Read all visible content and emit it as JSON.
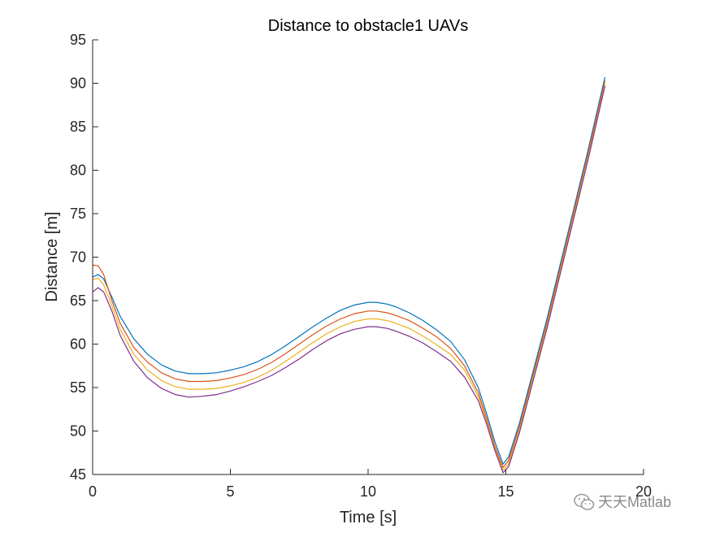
{
  "chart_data": {
    "type": "line",
    "title": "Distance to obstacle1 UAVs",
    "xlabel": "Time [s]",
    "ylabel": "Distance [m]",
    "xlim": [
      0,
      20
    ],
    "ylim": [
      45,
      95
    ],
    "xticks": [
      0,
      5,
      10,
      15,
      20
    ],
    "yticks": [
      45,
      50,
      55,
      60,
      65,
      70,
      75,
      80,
      85,
      90,
      95
    ],
    "grid": false,
    "series": [
      {
        "color": "#0072BD",
        "points": [
          [
            0,
            67.7
          ],
          [
            0.2,
            68.0
          ],
          [
            0.4,
            67.5
          ],
          [
            0.7,
            65.4
          ],
          [
            1,
            63.2
          ],
          [
            1.5,
            60.6
          ],
          [
            2,
            58.8
          ],
          [
            2.5,
            57.6
          ],
          [
            3,
            56.9
          ],
          [
            3.5,
            56.6
          ],
          [
            4,
            56.6
          ],
          [
            4.5,
            56.7
          ],
          [
            5,
            57.0
          ],
          [
            5.5,
            57.4
          ],
          [
            6,
            58.0
          ],
          [
            6.5,
            58.8
          ],
          [
            7,
            59.8
          ],
          [
            7.5,
            60.9
          ],
          [
            8,
            62.0
          ],
          [
            8.5,
            63.0
          ],
          [
            9,
            63.9
          ],
          [
            9.5,
            64.5
          ],
          [
            10,
            64.8
          ],
          [
            10.3,
            64.8
          ],
          [
            10.7,
            64.6
          ],
          [
            11,
            64.3
          ],
          [
            11.5,
            63.6
          ],
          [
            12,
            62.7
          ],
          [
            12.5,
            61.6
          ],
          [
            13,
            60.3
          ],
          [
            13.5,
            58.2
          ],
          [
            14,
            55.0
          ],
          [
            14.3,
            52.0
          ],
          [
            14.6,
            48.8
          ],
          [
            14.9,
            46.2
          ],
          [
            15.1,
            47.0
          ],
          [
            15.5,
            51.0
          ],
          [
            16,
            57.0
          ],
          [
            16.5,
            63.0
          ],
          [
            17,
            69.5
          ],
          [
            17.5,
            76.0
          ],
          [
            18,
            82.5
          ],
          [
            18.6,
            90.7
          ]
        ]
      },
      {
        "color": "#D95319",
        "points": [
          [
            0,
            69.1
          ],
          [
            0.2,
            69.0
          ],
          [
            0.4,
            68.0
          ],
          [
            0.7,
            65.0
          ],
          [
            1,
            62.4
          ],
          [
            1.5,
            59.6
          ],
          [
            2,
            57.9
          ],
          [
            2.5,
            56.7
          ],
          [
            3,
            56.0
          ],
          [
            3.5,
            55.7
          ],
          [
            4,
            55.7
          ],
          [
            4.5,
            55.8
          ],
          [
            5,
            56.1
          ],
          [
            5.5,
            56.5
          ],
          [
            6,
            57.1
          ],
          [
            6.5,
            57.9
          ],
          [
            7,
            58.9
          ],
          [
            7.5,
            60.0
          ],
          [
            8,
            61.1
          ],
          [
            8.5,
            62.1
          ],
          [
            9,
            62.9
          ],
          [
            9.5,
            63.5
          ],
          [
            10,
            63.8
          ],
          [
            10.3,
            63.8
          ],
          [
            10.7,
            63.6
          ],
          [
            11,
            63.3
          ],
          [
            11.5,
            62.7
          ],
          [
            12,
            61.8
          ],
          [
            12.5,
            60.8
          ],
          [
            13,
            59.5
          ],
          [
            13.5,
            57.5
          ],
          [
            14,
            54.4
          ],
          [
            14.3,
            51.5
          ],
          [
            14.6,
            48.3
          ],
          [
            14.9,
            45.8
          ],
          [
            15.1,
            46.6
          ],
          [
            15.5,
            50.6
          ],
          [
            16,
            56.6
          ],
          [
            16.5,
            62.6
          ],
          [
            17,
            69.1
          ],
          [
            17.5,
            75.6
          ],
          [
            18,
            82.1
          ],
          [
            18.6,
            90.3
          ]
        ]
      },
      {
        "color": "#EDB120",
        "points": [
          [
            0,
            67.4
          ],
          [
            0.2,
            67.6
          ],
          [
            0.4,
            66.8
          ],
          [
            0.7,
            64.4
          ],
          [
            1,
            61.7
          ],
          [
            1.5,
            58.8
          ],
          [
            2,
            57.0
          ],
          [
            2.5,
            55.8
          ],
          [
            3,
            55.1
          ],
          [
            3.5,
            54.8
          ],
          [
            4,
            54.8
          ],
          [
            4.5,
            54.9
          ],
          [
            5,
            55.2
          ],
          [
            5.5,
            55.6
          ],
          [
            6,
            56.2
          ],
          [
            6.5,
            57.0
          ],
          [
            7,
            58.0
          ],
          [
            7.5,
            59.1
          ],
          [
            8,
            60.2
          ],
          [
            8.5,
            61.2
          ],
          [
            9,
            62.0
          ],
          [
            9.5,
            62.6
          ],
          [
            10,
            62.9
          ],
          [
            10.3,
            62.9
          ],
          [
            10.7,
            62.7
          ],
          [
            11,
            62.4
          ],
          [
            11.5,
            61.8
          ],
          [
            12,
            60.9
          ],
          [
            12.5,
            59.9
          ],
          [
            13,
            58.8
          ],
          [
            13.5,
            57.0
          ],
          [
            14,
            54.0
          ],
          [
            14.3,
            51.1
          ],
          [
            14.6,
            48.0
          ],
          [
            14.9,
            45.5
          ],
          [
            15.1,
            46.2
          ],
          [
            15.5,
            50.2
          ],
          [
            16,
            56.2
          ],
          [
            16.5,
            62.2
          ],
          [
            17,
            68.7
          ],
          [
            17.5,
            75.2
          ],
          [
            18,
            81.7
          ],
          [
            18.6,
            89.9
          ]
        ]
      },
      {
        "color": "#7E2F8E",
        "points": [
          [
            0,
            66.0
          ],
          [
            0.2,
            66.5
          ],
          [
            0.4,
            66.0
          ],
          [
            0.7,
            63.8
          ],
          [
            1,
            61.0
          ],
          [
            1.5,
            58.0
          ],
          [
            2,
            56.1
          ],
          [
            2.5,
            54.9
          ],
          [
            3,
            54.2
          ],
          [
            3.5,
            53.9
          ],
          [
            4,
            54.0
          ],
          [
            4.5,
            54.2
          ],
          [
            5,
            54.6
          ],
          [
            5.5,
            55.1
          ],
          [
            6,
            55.7
          ],
          [
            6.5,
            56.4
          ],
          [
            7,
            57.3
          ],
          [
            7.5,
            58.3
          ],
          [
            8,
            59.4
          ],
          [
            8.5,
            60.4
          ],
          [
            9,
            61.2
          ],
          [
            9.5,
            61.7
          ],
          [
            10,
            62.0
          ],
          [
            10.3,
            62.0
          ],
          [
            10.7,
            61.8
          ],
          [
            11,
            61.5
          ],
          [
            11.5,
            60.9
          ],
          [
            12,
            60.1
          ],
          [
            12.5,
            59.1
          ],
          [
            13,
            58.0
          ],
          [
            13.5,
            56.2
          ],
          [
            14,
            53.5
          ],
          [
            14.3,
            50.8
          ],
          [
            14.6,
            47.8
          ],
          [
            14.9,
            45.2
          ],
          [
            15.1,
            45.9
          ],
          [
            15.5,
            49.9
          ],
          [
            16,
            55.9
          ],
          [
            16.5,
            61.9
          ],
          [
            17,
            68.4
          ],
          [
            17.5,
            74.9
          ],
          [
            18,
            81.4
          ],
          [
            18.6,
            89.7
          ]
        ]
      }
    ]
  },
  "watermark": {
    "text": "天天Matlab",
    "icon": "wechat-icon"
  }
}
